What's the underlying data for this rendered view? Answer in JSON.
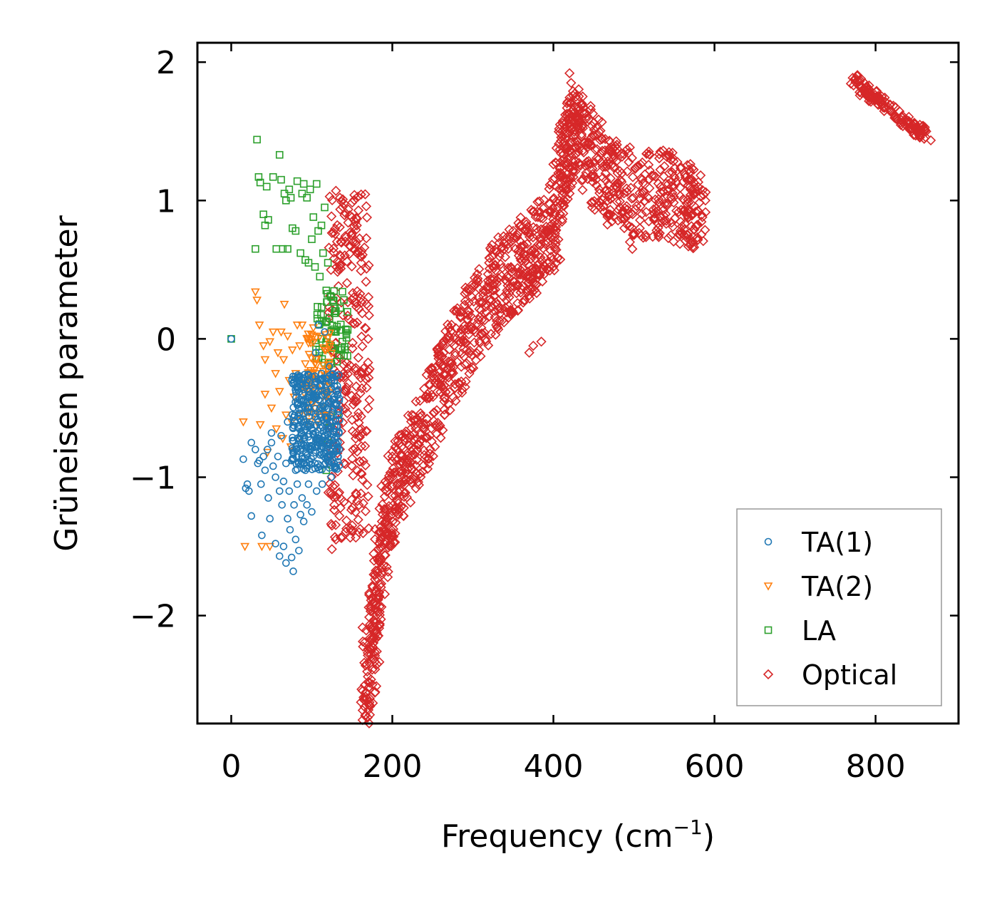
{
  "chart_data": {
    "type": "scatter",
    "xlabel": "Frequency (cm",
    "xlabel_sup": "−1",
    "xlabel_end": ")",
    "ylabel": "Grüneisen parameter",
    "xlim": [
      -42,
      903
    ],
    "ylim": [
      -2.78,
      2.14
    ],
    "xticks": [
      0,
      200,
      400,
      600,
      800
    ],
    "xtick_labels": [
      "0",
      "200",
      "400",
      "600",
      "800"
    ],
    "yticks": [
      -2,
      -1,
      0,
      1,
      2
    ],
    "ytick_labels": [
      "−2",
      "−1",
      "0",
      "1",
      "2"
    ],
    "legend_position": "lower-right",
    "series": [
      {
        "name": "TA(1)",
        "marker": "circle",
        "color": "#1f77b4",
        "points": [
          [
            0,
            0
          ],
          [
            15,
            -0.87
          ],
          [
            18,
            -1.08
          ],
          [
            20,
            -1.05
          ],
          [
            22,
            -1.1
          ],
          [
            25,
            -0.75
          ],
          [
            25,
            -1.28
          ],
          [
            30,
            -0.8
          ],
          [
            33,
            -0.9
          ],
          [
            35,
            -0.88
          ],
          [
            37,
            -1.05
          ],
          [
            38,
            -1.42
          ],
          [
            40,
            -0.85
          ],
          [
            42,
            -0.95
          ],
          [
            45,
            -0.8
          ],
          [
            46,
            -1.15
          ],
          [
            48,
            -1.3
          ],
          [
            50,
            -0.75
          ],
          [
            50,
            -0.68
          ],
          [
            52,
            -0.92
          ],
          [
            55,
            -1.0
          ],
          [
            55,
            -1.48
          ],
          [
            58,
            -0.85
          ],
          [
            60,
            -1.1
          ],
          [
            60,
            -1.57
          ],
          [
            62,
            -0.7
          ],
          [
            63,
            -1.2
          ],
          [
            65,
            -1.03
          ],
          [
            65,
            -1.5
          ],
          [
            68,
            -0.9
          ],
          [
            68,
            -1.62
          ],
          [
            70,
            -1.3
          ],
          [
            70,
            -0.6
          ],
          [
            72,
            -1.1
          ],
          [
            73,
            -1.38
          ],
          [
            75,
            -0.88
          ],
          [
            75,
            -1.58
          ],
          [
            77,
            -1.68
          ],
          [
            78,
            -1.2
          ],
          [
            80,
            -0.95
          ],
          [
            80,
            -1.45
          ],
          [
            82,
            -1.05
          ],
          [
            84,
            -1.53
          ],
          [
            85,
            -0.72
          ],
          [
            86,
            -1.27
          ],
          [
            88,
            -1.15
          ],
          [
            90,
            -0.6
          ],
          [
            90,
            -1.32
          ],
          [
            92,
            -0.95
          ],
          [
            94,
            -1.2
          ],
          [
            95,
            -0.5
          ],
          [
            96,
            -1.05
          ],
          [
            98,
            -0.8
          ],
          [
            100,
            -0.65
          ],
          [
            100,
            -1.25
          ],
          [
            102,
            -0.4
          ],
          [
            104,
            -0.9
          ],
          [
            105,
            -0.1
          ],
          [
            106,
            -1.1
          ],
          [
            108,
            -0.7
          ],
          [
            108,
            0.1
          ],
          [
            110,
            -0.55
          ],
          [
            112,
            -0.25
          ],
          [
            113,
            -1.05
          ],
          [
            115,
            -0.85
          ],
          [
            116,
            0.05
          ],
          [
            118,
            -0.45
          ],
          [
            120,
            -0.65
          ],
          [
            122,
            -0.2
          ],
          [
            124,
            -1.0
          ],
          [
            126,
            -0.5
          ],
          [
            128,
            -0.3
          ],
          [
            130,
            -0.75
          ],
          [
            132,
            -0.4
          ],
          [
            134,
            -0.55
          ]
        ],
        "cluster": {
          "x": [
            75,
            135
          ],
          "y": [
            -0.95,
            -0.25
          ],
          "n": 360
        }
      },
      {
        "name": "TA(2)",
        "marker": "triangle-down",
        "color": "#ff7f0e",
        "points": [
          [
            15,
            -0.6
          ],
          [
            17,
            -1.5
          ],
          [
            30,
            0.34
          ],
          [
            32,
            0.28
          ],
          [
            35,
            0.1
          ],
          [
            36,
            -0.62
          ],
          [
            38,
            -1.5
          ],
          [
            40,
            -0.05
          ],
          [
            42,
            -0.15
          ],
          [
            42,
            -0.4
          ],
          [
            45,
            -0.82
          ],
          [
            48,
            -0.02
          ],
          [
            48,
            -1.5
          ],
          [
            50,
            -0.5
          ],
          [
            52,
            0.05
          ],
          [
            55,
            -0.25
          ],
          [
            56,
            -0.65
          ],
          [
            58,
            -0.1
          ],
          [
            60,
            -0.38
          ],
          [
            62,
            0.05
          ],
          [
            64,
            -0.72
          ],
          [
            65,
            -0.15
          ],
          [
            66,
            0.25
          ],
          [
            68,
            -0.55
          ],
          [
            70,
            0.02
          ],
          [
            72,
            -0.3
          ],
          [
            74,
            -0.78
          ],
          [
            75,
            -0.6
          ],
          [
            76,
            -0.08
          ],
          [
            78,
            -0.42
          ],
          [
            80,
            -0.25
          ],
          [
            82,
            0.1
          ],
          [
            84,
            -0.55
          ],
          [
            85,
            -0.05
          ],
          [
            86,
            -0.72
          ],
          [
            88,
            0.1
          ],
          [
            90,
            -0.35
          ],
          [
            92,
            -0.18
          ],
          [
            95,
            -0.48
          ],
          [
            96,
            -0.03
          ],
          [
            98,
            -0.6
          ],
          [
            100,
            -0.28
          ],
          [
            102,
            0.08
          ],
          [
            104,
            -0.42
          ],
          [
            106,
            -0.15
          ],
          [
            108,
            -0.62
          ],
          [
            110,
            0.02
          ],
          [
            112,
            -0.3
          ],
          [
            114,
            -0.5
          ],
          [
            116,
            -0.08
          ],
          [
            118,
            -0.38
          ],
          [
            120,
            -0.55
          ]
        ],
        "cluster": {
          "x": [
            90,
            125
          ],
          "y": [
            -0.6,
            0.05
          ],
          "n": 70
        }
      },
      {
        "name": "LA",
        "marker": "square",
        "color": "#2ca02c",
        "points": [
          [
            0,
            0
          ],
          [
            30,
            0.65
          ],
          [
            32,
            1.44
          ],
          [
            34,
            1.17
          ],
          [
            36,
            1.13
          ],
          [
            40,
            0.9
          ],
          [
            42,
            0.82
          ],
          [
            44,
            1.1
          ],
          [
            46,
            0.86
          ],
          [
            52,
            1.17
          ],
          [
            56,
            0.65
          ],
          [
            60,
            1.33
          ],
          [
            62,
            1.15
          ],
          [
            64,
            0.65
          ],
          [
            66,
            1.05
          ],
          [
            68,
            1.0
          ],
          [
            70,
            0.65
          ],
          [
            72,
            1.08
          ],
          [
            74,
            1.02
          ],
          [
            76,
            0.8
          ],
          [
            80,
            0.78
          ],
          [
            82,
            1.14
          ],
          [
            86,
            0.62
          ],
          [
            88,
            1.05
          ],
          [
            90,
            1.12
          ],
          [
            92,
            0.57
          ],
          [
            94,
            1.02
          ],
          [
            96,
            0.55
          ],
          [
            98,
            1.08
          ],
          [
            100,
            0.72
          ],
          [
            102,
            0.88
          ],
          [
            104,
            0.52
          ],
          [
            106,
            1.12
          ],
          [
            108,
            0.78
          ],
          [
            110,
            0.45
          ],
          [
            112,
            0.82
          ],
          [
            114,
            0.62
          ],
          [
            116,
            0.95
          ],
          [
            118,
            0.35
          ],
          [
            120,
            0.55
          ],
          [
            122,
            0.15
          ],
          [
            124,
            -0.05
          ],
          [
            126,
            0.28
          ],
          [
            128,
            -0.3
          ],
          [
            130,
            0.05
          ],
          [
            132,
            -0.55
          ],
          [
            134,
            -0.12
          ],
          [
            136,
            -0.08
          ],
          [
            138,
            -0.02
          ],
          [
            140,
            -0.12
          ],
          [
            118,
            -0.95
          ],
          [
            120,
            -0.75
          ],
          [
            122,
            -0.6
          ]
        ],
        "cluster": {
          "x": [
            105,
            145
          ],
          "y": [
            -0.2,
            0.35
          ],
          "n": 60
        }
      },
      {
        "name": "Optical",
        "marker": "diamond",
        "color": "#d62728",
        "bands": [
          {
            "x": [
              120,
              172
            ],
            "y": [
              -1.45,
              1.05
            ],
            "n": 280,
            "mode": "box"
          },
          {
            "path": [
              [
                165,
                -2.55
              ],
              [
                175,
                -2.2
              ],
              [
                185,
                -1.6
              ],
              [
                200,
                -1.1
              ],
              [
                220,
                -0.9
              ],
              [
                240,
                -0.6
              ],
              [
                260,
                -0.35
              ],
              [
                280,
                -0.1
              ],
              [
                300,
                0.1
              ],
              [
                320,
                0.3
              ],
              [
                340,
                0.45
              ],
              [
                360,
                0.55
              ],
              [
                380,
                0.65
              ],
              [
                400,
                0.8
              ],
              [
                410,
                1.2
              ],
              [
                420,
                1.45
              ],
              [
                430,
                1.5
              ],
              [
                450,
                1.3
              ],
              [
                470,
                1.15
              ],
              [
                500,
                1.05
              ],
              [
                530,
                1.05
              ],
              [
                560,
                1.0
              ],
              [
                585,
                0.9
              ]
            ],
            "spread": 0.32,
            "n": 1500,
            "mode": "path"
          },
          {
            "path": [
              [
                775,
                1.88
              ],
              [
                790,
                1.78
              ],
              [
                810,
                1.7
              ],
              [
                830,
                1.6
              ],
              [
                850,
                1.52
              ],
              [
                862,
                1.47
              ]
            ],
            "spread": 0.04,
            "n": 160,
            "mode": "path"
          }
        ],
        "points": [
          [
            130,
            1.07
          ],
          [
            135,
            1.02
          ],
          [
            140,
            0.98
          ],
          [
            150,
            0.88
          ],
          [
            156,
            0.82
          ],
          [
            160,
            0.6
          ],
          [
            168,
            0.25
          ],
          [
            170,
            0.0
          ],
          [
            128,
            -1.2
          ],
          [
            125,
            -1.35
          ],
          [
            130,
            -1.45
          ],
          [
            125,
            -1.52
          ],
          [
            172,
            -2.6
          ],
          [
            170,
            -2.48
          ],
          [
            168,
            -2.35
          ],
          [
            420,
            1.92
          ],
          [
            422,
            1.85
          ],
          [
            428,
            1.75
          ],
          [
            575,
            1.05
          ],
          [
            585,
            0.88
          ],
          [
            580,
            0.92
          ],
          [
            495,
            0.7
          ],
          [
            498,
            0.65
          ],
          [
            488,
            0.8
          ],
          [
            385,
            -0.02
          ],
          [
            375,
            -0.05
          ],
          [
            370,
            -0.1
          ],
          [
            360,
            0.82
          ],
          [
            350,
            0.78
          ],
          [
            250,
            -0.25
          ],
          [
            255,
            -0.3
          ],
          [
            200,
            -0.85
          ],
          [
            205,
            -0.88
          ]
        ]
      }
    ]
  }
}
